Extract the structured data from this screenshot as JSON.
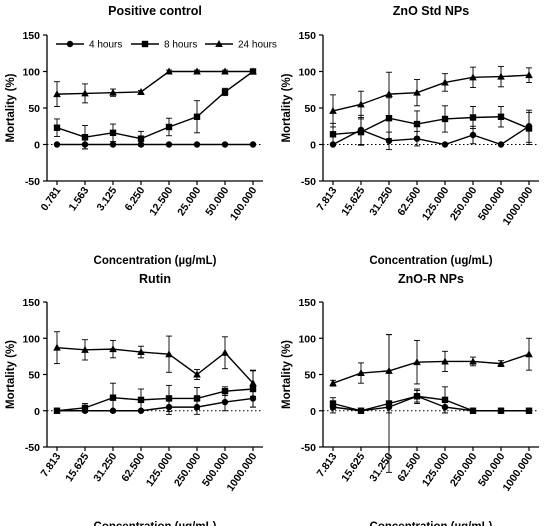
{
  "chart_data": [
    {
      "type": "line",
      "title": "Positive control",
      "xlabel": "Concentration (µg/mL)",
      "ylabel": "Mortality (%)",
      "ylim": [
        -50,
        150
      ],
      "yticks": [
        -50,
        0,
        50,
        100,
        150
      ],
      "categories": [
        "0.781",
        "1.563",
        "3.125",
        "6.250",
        "12.500",
        "25.000",
        "50.000",
        "100.000"
      ],
      "legend": {
        "placement": "top",
        "entries": [
          "4 hours",
          "8 hours",
          "24 hours"
        ]
      },
      "zero_line": "dotted",
      "series": [
        {
          "name": "4 hours",
          "marker": "circle",
          "values": [
            0,
            0,
            0,
            0,
            0,
            0,
            0,
            0
          ],
          "errors": [
            0,
            6,
            0,
            0,
            0,
            0,
            0,
            0
          ]
        },
        {
          "name": "8 hours",
          "marker": "square",
          "values": [
            23,
            10,
            16,
            8,
            24,
            38,
            72,
            100
          ],
          "errors": [
            12,
            16,
            12,
            10,
            12,
            22,
            5,
            3
          ]
        },
        {
          "name": "24 hours",
          "marker": "triangle",
          "values": [
            69,
            70,
            71,
            72,
            100,
            100,
            100,
            100
          ],
          "errors": [
            17,
            13,
            5,
            2,
            2,
            2,
            2,
            2
          ]
        }
      ]
    },
    {
      "type": "line",
      "title": "ZnO Std NPs",
      "xlabel": "Concentration (ug/mL)",
      "ylabel": "Mortality (%)",
      "ylim": [
        -50,
        150
      ],
      "yticks": [
        -50,
        0,
        50,
        100,
        150
      ],
      "categories": [
        "7.813",
        "15.625",
        "31.250",
        "62.500",
        "125.000",
        "250.000",
        "500.000",
        "1000.000"
      ],
      "zero_line": "dotted",
      "series": [
        {
          "marker": "circle",
          "values": [
            0,
            20,
            5,
            8,
            0,
            13,
            0,
            25
          ],
          "errors": [
            0,
            20,
            12,
            10,
            0,
            12,
            0,
            22
          ]
        },
        {
          "marker": "square",
          "values": [
            14,
            17,
            36,
            28,
            35,
            37,
            38,
            22
          ],
          "errors": [
            15,
            18,
            28,
            18,
            18,
            15,
            14,
            22
          ]
        },
        {
          "marker": "triangle",
          "values": [
            46,
            55,
            69,
            71,
            85,
            92,
            93,
            95
          ],
          "errors": [
            22,
            18,
            30,
            18,
            12,
            14,
            14,
            10
          ]
        }
      ]
    },
    {
      "type": "line",
      "title": "Rutin",
      "xlabel": "Concentration (µg/mL)",
      "ylabel": "Mortality (%)",
      "ylim": [
        -50,
        150
      ],
      "yticks": [
        -50,
        0,
        50,
        100,
        150
      ],
      "categories": [
        "7.813",
        "15.625",
        "31.250",
        "62.500",
        "125.000",
        "250.000",
        "500.000",
        "1000.000"
      ],
      "zero_line": "dotted",
      "series": [
        {
          "marker": "circle",
          "values": [
            0,
            0,
            0,
            0,
            5,
            5,
            12,
            17
          ],
          "errors": [
            0,
            0,
            0,
            0,
            10,
            10,
            12,
            12
          ]
        },
        {
          "marker": "square",
          "values": [
            0,
            4,
            18,
            15,
            17,
            17,
            27,
            30
          ],
          "errors": [
            0,
            6,
            20,
            15,
            18,
            15,
            6,
            25
          ]
        },
        {
          "marker": "triangle",
          "values": [
            87,
            84,
            85,
            81,
            78,
            50,
            80,
            38
          ],
          "errors": [
            22,
            14,
            12,
            8,
            25,
            7,
            22,
            18
          ]
        }
      ]
    },
    {
      "type": "line",
      "title": "ZnO-R NPs",
      "xlabel": "Concentration (µg/mL)",
      "ylabel": "Mortality (%)",
      "ylim": [
        -50,
        150
      ],
      "yticks": [
        -50,
        0,
        50,
        100,
        150
      ],
      "categories": [
        "7.813",
        "15.625",
        "31.250",
        "62.500",
        "125.000",
        "250.000",
        "500.000",
        "1000.000"
      ],
      "zero_line": "dotted",
      "series": [
        {
          "marker": "circle",
          "values": [
            5,
            0,
            5,
            20,
            5,
            0,
            0,
            0
          ],
          "errors": [
            8,
            0,
            8,
            8,
            8,
            0,
            0,
            0
          ]
        },
        {
          "marker": "square",
          "values": [
            10,
            0,
            10,
            20,
            15,
            0,
            0,
            0
          ],
          "errors": [
            8,
            0,
            95,
            10,
            18,
            0,
            0,
            0
          ]
        },
        {
          "marker": "triangle",
          "values": [
            38,
            52,
            55,
            67,
            68,
            68,
            65,
            78
          ],
          "errors": [
            4,
            14,
            50,
            30,
            14,
            6,
            4,
            22
          ]
        }
      ]
    }
  ]
}
